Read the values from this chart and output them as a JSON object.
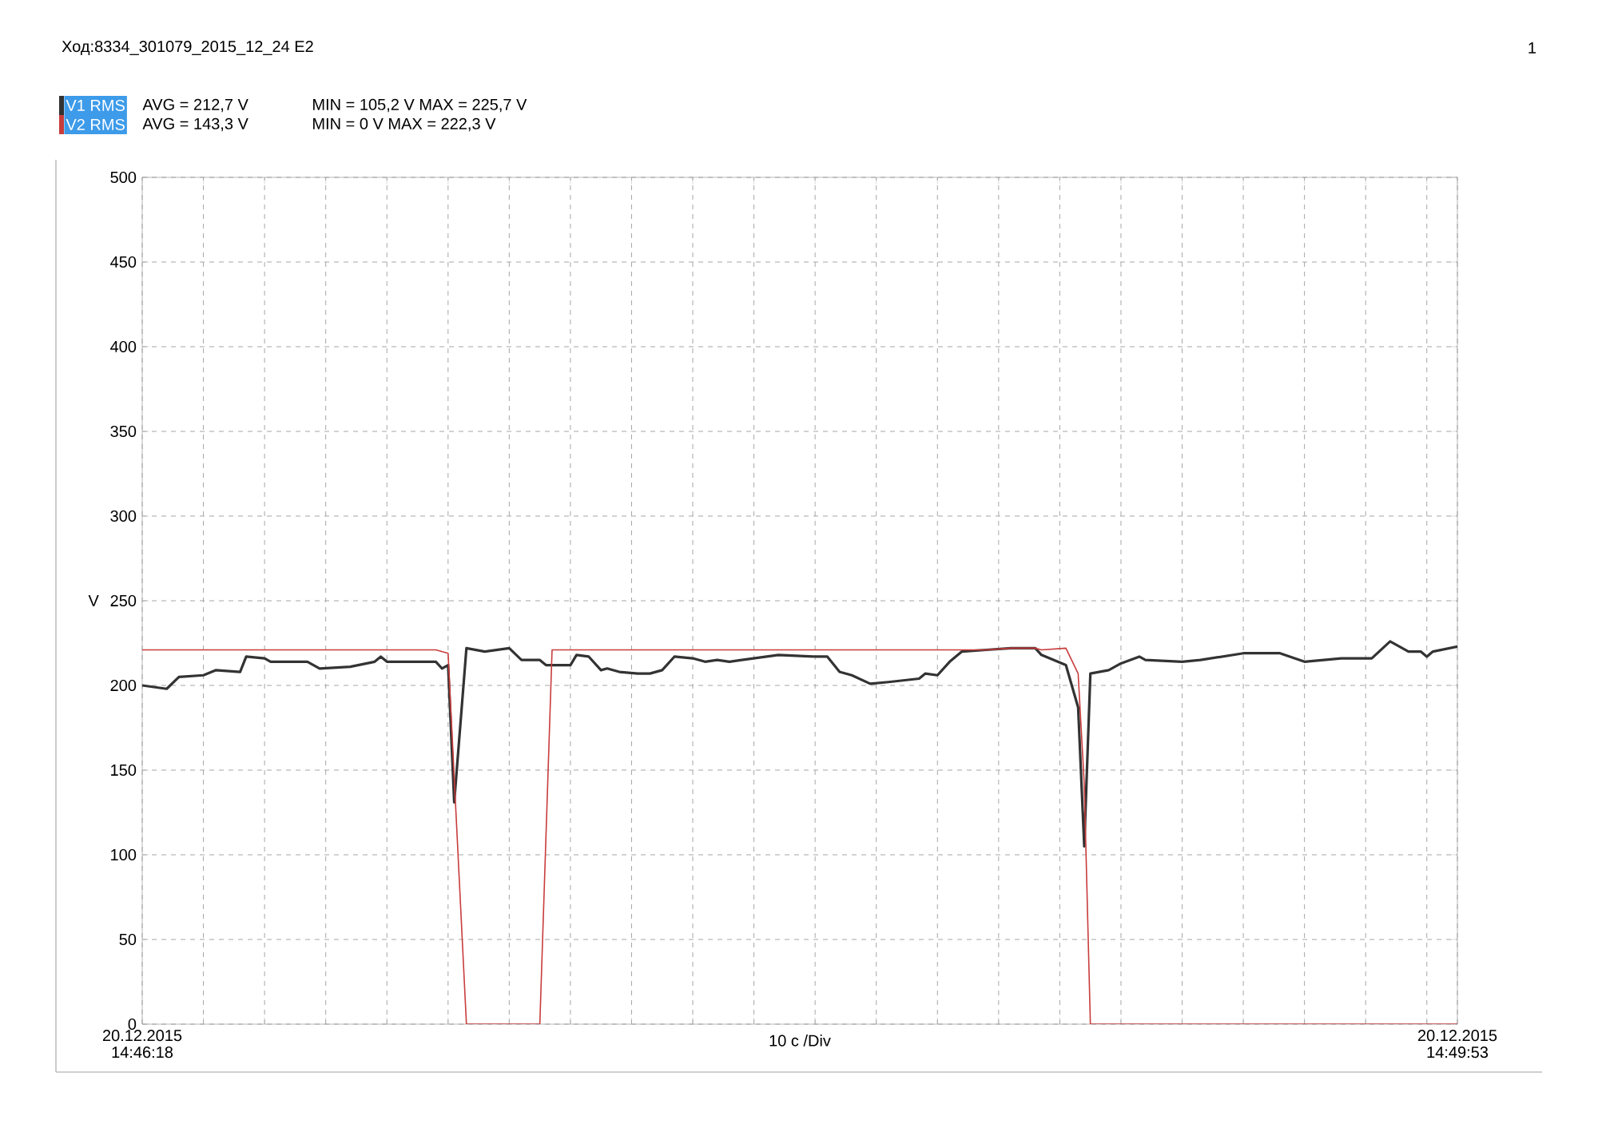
{
  "chart_data": {
    "type": "line",
    "title": "Ход:8334_301079_2015_12_24 E2",
    "xlabel": "10 c /Div",
    "ylabel": "V",
    "annotations": [
      "AVG = 212,7 V",
      "MIN = 105,2 V MAX = 225,7 V",
      "AVG = 143,3 V",
      "MIN = 0 V MAX = 222,3 V",
      "1"
    ],
    "legend": "top left",
    "grid": true,
    "xlim": [
      "2015-12-20T14:46:18",
      "2015-12-20T14:49:53"
    ],
    "ylim": [
      0,
      500
    ],
    "xticks": [
      {
        "value": "2015-12-20T14:46:18",
        "label": "20.12.2015 14:46:18"
      },
      {
        "value": "2015-12-20T14:46:28",
        "label": null
      },
      {
        "value": "2015-12-20T14:46:38",
        "label": null
      },
      {
        "value": "2015-12-20T14:46:48",
        "label": null
      },
      {
        "value": "2015-12-20T14:46:58",
        "label": null
      },
      {
        "value": "2015-12-20T14:47:08",
        "label": null
      },
      {
        "value": "2015-12-20T14:47:18",
        "label": null
      },
      {
        "value": "2015-12-20T14:47:28",
        "label": null
      },
      {
        "value": "2015-12-20T14:47:38",
        "label": null
      },
      {
        "value": "2015-12-20T14:47:48",
        "label": null
      },
      {
        "value": "2015-12-20T14:47:58",
        "label": null
      },
      {
        "value": "2015-12-20T14:48:08",
        "label": null
      },
      {
        "value": "2015-12-20T14:48:18",
        "label": null
      },
      {
        "value": "2015-12-20T14:48:28",
        "label": null
      },
      {
        "value": "2015-12-20T14:48:38",
        "label": null
      },
      {
        "value": "2015-12-20T14:48:48",
        "label": null
      },
      {
        "value": "2015-12-20T14:48:58",
        "label": null
      },
      {
        "value": "2015-12-20T14:49:08",
        "label": null
      },
      {
        "value": "2015-12-20T14:49:18",
        "label": null
      },
      {
        "value": "2015-12-20T14:49:28",
        "label": null
      },
      {
        "value": "2015-12-20T14:49:38",
        "label": null
      },
      {
        "value": "2015-12-20T14:49:48",
        "label": null
      },
      {
        "value": "2015-12-20T14:49:53",
        "label": "20.12.2015 14:49:53"
      }
    ],
    "yticks": [
      0,
      50,
      100,
      150,
      200,
      250,
      300,
      350,
      400,
      450,
      500
    ],
    "series": [
      {
        "name": "V1 RMS",
        "color": "#333333",
        "x": [
          "2015-12-20T14:46:18",
          "2015-12-20T14:46:22",
          "2015-12-20T14:46:24",
          "2015-12-20T14:46:28",
          "2015-12-20T14:46:30",
          "2015-12-20T14:46:34",
          "2015-12-20T14:46:35",
          "2015-12-20T14:46:38",
          "2015-12-20T14:46:39",
          "2015-12-20T14:46:45",
          "2015-12-20T14:46:47",
          "2015-12-20T14:46:52",
          "2015-12-20T14:46:56",
          "2015-12-20T14:46:57",
          "2015-12-20T14:46:58",
          "2015-12-20T14:47:06",
          "2015-12-20T14:47:07",
          "2015-12-20T14:47:08",
          "2015-12-20T14:47:09",
          "2015-12-20T14:47:11",
          "2015-12-20T14:47:14",
          "2015-12-20T14:47:18",
          "2015-12-20T14:47:20",
          "2015-12-20T14:47:23",
          "2015-12-20T14:47:24",
          "2015-12-20T14:47:28",
          "2015-12-20T14:47:29",
          "2015-12-20T14:47:31",
          "2015-12-20T14:47:33",
          "2015-12-20T14:47:34",
          "2015-12-20T14:47:36",
          "2015-12-20T14:47:39",
          "2015-12-20T14:47:41",
          "2015-12-20T14:47:43",
          "2015-12-20T14:47:45",
          "2015-12-20T14:47:48",
          "2015-12-20T14:47:50",
          "2015-12-20T14:47:52",
          "2015-12-20T14:47:54",
          "2015-12-20T14:47:56",
          "2015-12-20T14:48:02",
          "2015-12-20T14:48:08",
          "2015-12-20T14:48:10",
          "2015-12-20T14:48:12",
          "2015-12-20T14:48:14",
          "2015-12-20T14:48:17",
          "2015-12-20T14:48:20",
          "2015-12-20T14:48:25",
          "2015-12-20T14:48:26",
          "2015-12-20T14:48:28",
          "2015-12-20T14:48:30",
          "2015-12-20T14:48:32",
          "2015-12-20T14:48:36",
          "2015-12-20T14:48:40",
          "2015-12-20T14:48:44",
          "2015-12-20T14:48:45",
          "2015-12-20T14:48:49",
          "2015-12-20T14:48:51",
          "2015-12-20T14:48:52",
          "2015-12-20T14:48:53",
          "2015-12-20T14:48:56",
          "2015-12-20T14:48:58",
          "2015-12-20T14:49:01",
          "2015-12-20T14:49:02",
          "2015-12-20T14:49:08",
          "2015-12-20T14:49:11",
          "2015-12-20T14:49:18",
          "2015-12-20T14:49:24",
          "2015-12-20T14:49:28",
          "2015-12-20T14:49:34",
          "2015-12-20T14:49:39",
          "2015-12-20T14:49:42",
          "2015-12-20T14:49:45",
          "2015-12-20T14:49:47",
          "2015-12-20T14:49:48",
          "2015-12-20T14:49:49",
          "2015-12-20T14:49:53"
        ],
        "values": [
          200,
          198,
          205,
          206,
          209,
          208,
          217,
          216,
          214,
          214,
          210,
          211,
          214,
          217,
          214,
          214,
          210,
          212,
          131,
          222,
          220,
          222,
          215,
          215,
          212,
          212,
          218,
          217,
          209,
          210,
          208,
          207,
          207,
          209,
          217,
          216,
          214,
          215,
          214,
          215,
          218,
          217,
          217,
          208,
          206,
          201,
          202,
          204,
          207,
          206,
          214,
          220,
          221,
          222,
          222,
          218,
          212,
          187,
          105,
          207,
          209,
          213,
          217,
          215,
          214,
          215,
          219,
          219,
          214,
          216,
          216,
          226,
          220,
          220,
          217,
          220,
          223
        ]
      },
      {
        "name": "V2 RMS",
        "color": "#c83c3c",
        "x": [
          "2015-12-20T14:46:18",
          "2015-12-20T14:47:06",
          "2015-12-20T14:47:08",
          "2015-12-20T14:47:11",
          "2015-12-20T14:47:23",
          "2015-12-20T14:47:25",
          "2015-12-20T14:48:36",
          "2015-12-20T14:48:40",
          "2015-12-20T14:48:44",
          "2015-12-20T14:48:45",
          "2015-12-20T14:48:49",
          "2015-12-20T14:48:51",
          "2015-12-20T14:48:52",
          "2015-12-20T14:48:53",
          "2015-12-20T14:49:53"
        ],
        "values": [
          221,
          221,
          219,
          0,
          0,
          221,
          221,
          222,
          222,
          221,
          222,
          207,
          142,
          0,
          0
        ]
      }
    ]
  }
}
